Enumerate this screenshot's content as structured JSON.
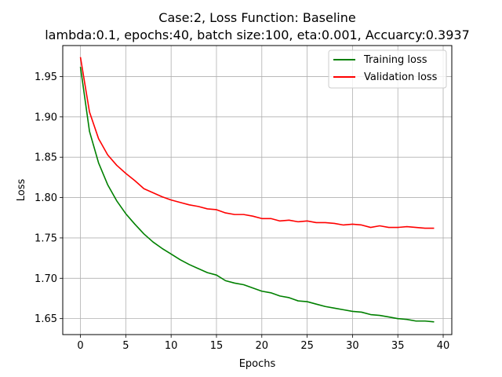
{
  "chart_data": {
    "type": "line",
    "title": "Case:2, Loss Function: Baseline",
    "subtitle": "lambda:0.1, epochs:40, batch size:100, eta:0.001, Accuarcy:0.3937",
    "xlabel": "Epochs",
    "ylabel": "Loss",
    "xlim": [
      -1.95,
      40.95
    ],
    "ylim": [
      1.6302,
      1.9884
    ],
    "xticks": [
      0,
      5,
      10,
      15,
      20,
      25,
      30,
      35,
      40
    ],
    "yticks": [
      1.65,
      1.7,
      1.75,
      1.8,
      1.85,
      1.9,
      1.95
    ],
    "ytick_labels": [
      "1.65",
      "1.70",
      "1.75",
      "1.80",
      "1.85",
      "1.90",
      "1.95"
    ],
    "grid": true,
    "legend_position": "top-right",
    "x": [
      0,
      1,
      2,
      3,
      4,
      5,
      6,
      7,
      8,
      9,
      10,
      11,
      12,
      13,
      14,
      15,
      16,
      17,
      18,
      19,
      20,
      21,
      22,
      23,
      24,
      25,
      26,
      27,
      28,
      29,
      30,
      31,
      32,
      33,
      34,
      35,
      36,
      37,
      38,
      39
    ],
    "series": [
      {
        "name": "Training loss",
        "color": "#008000",
        "values": [
          1.962,
          1.882,
          1.843,
          1.816,
          1.796,
          1.78,
          1.767,
          1.755,
          1.745,
          1.737,
          1.73,
          1.723,
          1.717,
          1.712,
          1.707,
          1.704,
          1.697,
          1.694,
          1.692,
          1.688,
          1.684,
          1.682,
          1.678,
          1.676,
          1.672,
          1.671,
          1.668,
          1.665,
          1.663,
          1.661,
          1.659,
          1.658,
          1.655,
          1.654,
          1.652,
          1.65,
          1.649,
          1.647,
          1.647,
          1.646
        ]
      },
      {
        "name": "Validation loss",
        "color": "#ff0000",
        "values": [
          1.974,
          1.906,
          1.873,
          1.853,
          1.84,
          1.83,
          1.821,
          1.811,
          1.806,
          1.801,
          1.797,
          1.794,
          1.791,
          1.789,
          1.786,
          1.785,
          1.781,
          1.779,
          1.779,
          1.777,
          1.774,
          1.774,
          1.771,
          1.772,
          1.77,
          1.771,
          1.769,
          1.769,
          1.768,
          1.766,
          1.767,
          1.766,
          1.763,
          1.765,
          1.763,
          1.763,
          1.764,
          1.763,
          1.762,
          1.762
        ]
      }
    ]
  }
}
